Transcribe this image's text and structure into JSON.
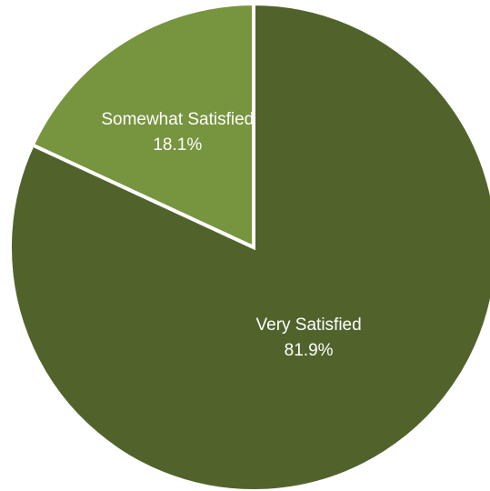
{
  "chart_data": {
    "type": "pie",
    "title": "",
    "slices": [
      {
        "label": "Very Satisfied",
        "value": 81.9,
        "value_label": "81.9%",
        "color": "#51632b"
      },
      {
        "label": "Somewhat Satisfied",
        "value": 18.1,
        "value_label": "18.1%",
        "color": "#77943f"
      }
    ],
    "start_angle_deg": 0,
    "direction": "clockwise",
    "separator_color": "#ffffff",
    "legend": "none"
  }
}
